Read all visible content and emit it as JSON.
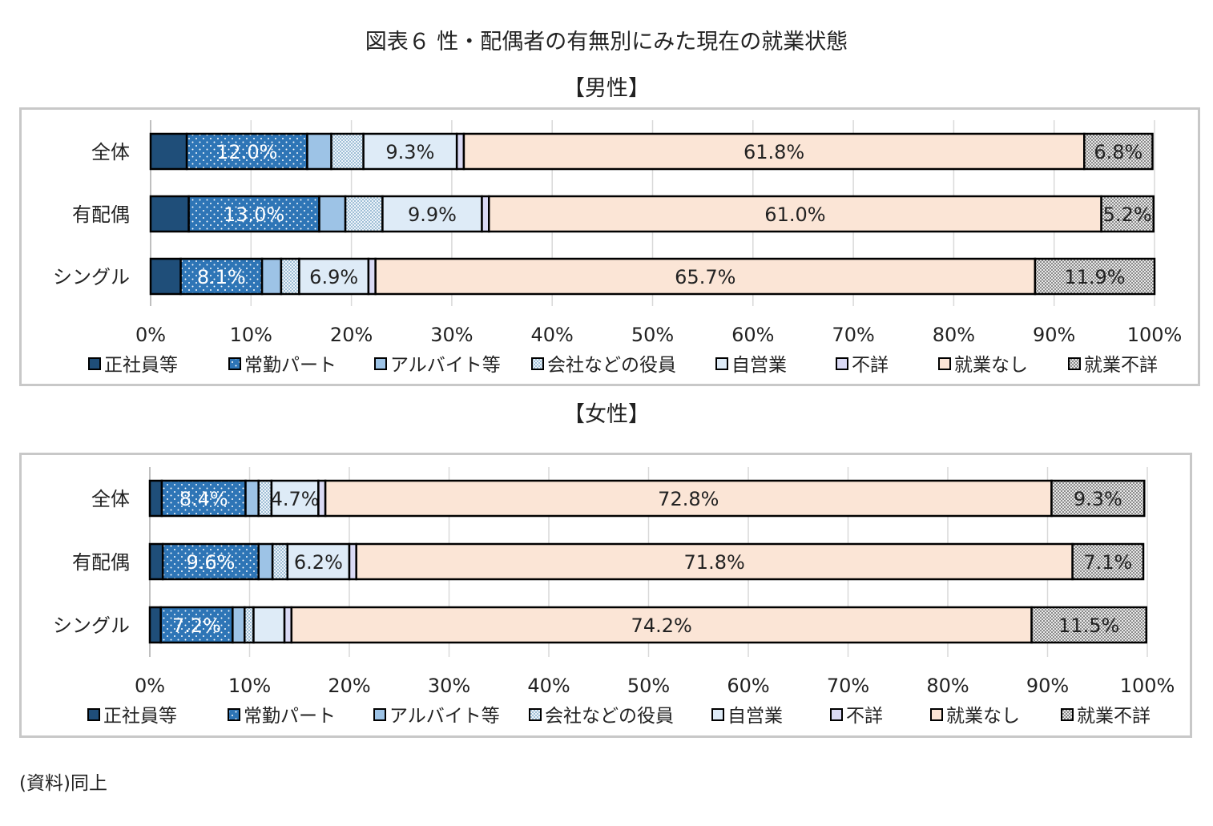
{
  "title": "図表６ 性・配偶者の有無別にみた現在の就業状態",
  "source": "(資料)同上",
  "colors": {
    "regular": "#1f4e79",
    "part_time": "#2e75b6",
    "arbeit": "#9dc3e6",
    "executive": "#d6e6f2",
    "self_employed": "#deebf7",
    "unknown": "#dadaf5",
    "not_employed": "#fbe5d6",
    "employment_unknown": "#d0d0d0"
  },
  "chart_data": [
    {
      "type": "bar",
      "orientation": "horizontal",
      "stacked": "100%",
      "title": "【男性】",
      "categories": [
        "全体",
        "有配偶",
        "シングル"
      ],
      "series": [
        {
          "name": "正社員等",
          "values": [
            3.6,
            3.8,
            3.0
          ]
        },
        {
          "name": "常勤パート",
          "values": [
            12.0,
            13.0,
            8.1
          ]
        },
        {
          "name": "アルバイト等",
          "values": [
            2.4,
            2.6,
            1.9
          ]
        },
        {
          "name": "会社などの役員",
          "values": [
            3.2,
            3.7,
            1.8
          ]
        },
        {
          "name": "自営業",
          "values": [
            9.3,
            9.9,
            6.9
          ]
        },
        {
          "name": "不詳",
          "values": [
            0.7,
            0.7,
            0.7
          ]
        },
        {
          "name": "就業なし",
          "values": [
            61.8,
            61.0,
            65.7
          ]
        },
        {
          "name": "就業不詳",
          "values": [
            6.8,
            5.2,
            11.9
          ]
        }
      ],
      "data_labels": [
        [
          "",
          "12.0%",
          "",
          "",
          "9.3%",
          "",
          "61.8%",
          "6.8%"
        ],
        [
          "",
          "13.0%",
          "",
          "",
          "9.9%",
          "",
          "61.0%",
          "5.2%"
        ],
        [
          "",
          "8.1%",
          "",
          "",
          "6.9%",
          "",
          "65.7%",
          "11.9%"
        ]
      ],
      "xlim": [
        0,
        100
      ],
      "x_ticks": [
        "0%",
        "10%",
        "20%",
        "30%",
        "40%",
        "50%",
        "60%",
        "70%",
        "80%",
        "90%",
        "100%"
      ],
      "grid": true,
      "legend": "bottom"
    },
    {
      "type": "bar",
      "orientation": "horizontal",
      "stacked": "100%",
      "title": "【女性】",
      "categories": [
        "全体",
        "有配偶",
        "シングル"
      ],
      "series": [
        {
          "name": "正社員等",
          "values": [
            1.2,
            1.3,
            1.1
          ]
        },
        {
          "name": "常勤パート",
          "values": [
            8.4,
            9.6,
            7.2
          ]
        },
        {
          "name": "アルバイト等",
          "values": [
            1.3,
            1.4,
            1.2
          ]
        },
        {
          "name": "会社などの役員",
          "values": [
            1.3,
            1.5,
            0.9
          ]
        },
        {
          "name": "自営業",
          "values": [
            4.7,
            6.2,
            3.1
          ]
        },
        {
          "name": "不詳",
          "values": [
            0.7,
            0.7,
            0.7
          ]
        },
        {
          "name": "就業なし",
          "values": [
            72.8,
            71.8,
            74.2
          ]
        },
        {
          "name": "就業不詳",
          "values": [
            9.3,
            7.1,
            11.5
          ]
        }
      ],
      "data_labels": [
        [
          "",
          "8.4%",
          "",
          "",
          "4.7%",
          "",
          "72.8%",
          "9.3%"
        ],
        [
          "",
          "9.6%",
          "",
          "",
          "6.2%",
          "",
          "71.8%",
          "7.1%"
        ],
        [
          "",
          "7.2%",
          "",
          "",
          "",
          "",
          "74.2%",
          "11.5%"
        ]
      ],
      "xlim": [
        0,
        100
      ],
      "x_ticks": [
        "0%",
        "10%",
        "20%",
        "30%",
        "40%",
        "50%",
        "60%",
        "70%",
        "80%",
        "90%",
        "100%"
      ],
      "grid": true,
      "legend": "bottom"
    }
  ]
}
